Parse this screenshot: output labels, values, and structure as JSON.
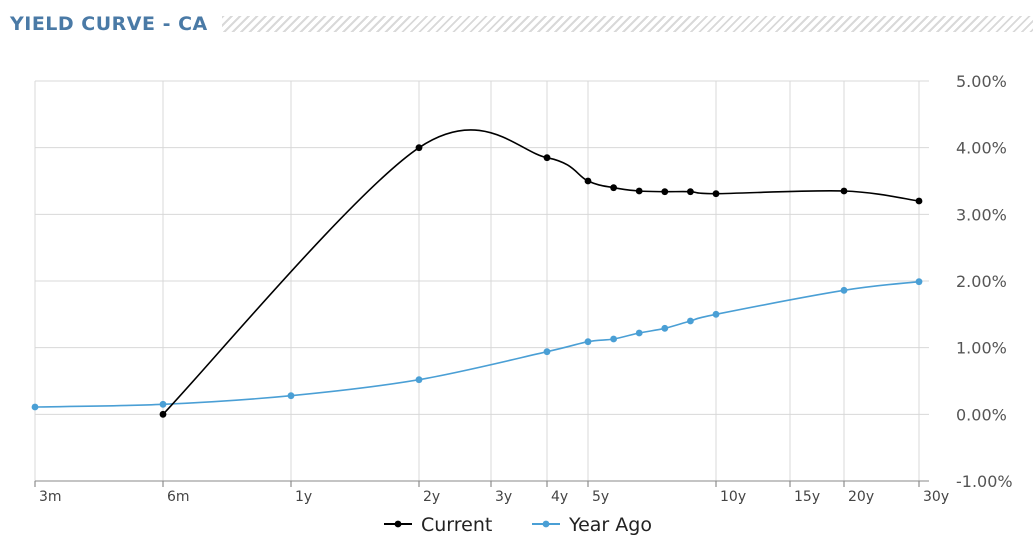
{
  "header": {
    "title": "YIELD CURVE - CA"
  },
  "chart_data": {
    "type": "line",
    "categories": [
      "3m",
      "6m",
      "1y",
      "2y",
      "3y",
      "4y",
      "5y",
      "10y",
      "15y",
      "20y",
      "30y"
    ],
    "y_ticks": [
      "5.00%",
      "4.00%",
      "3.00%",
      "2.00%",
      "1.00%",
      "0.00%",
      "-1.00%"
    ],
    "ylim": [
      -1,
      5
    ],
    "grid": true,
    "legend": "bottom-center",
    "series": [
      {
        "name": "Current",
        "color": "#000000",
        "points": [
          {
            "x": 0.5,
            "y": 0.0
          },
          {
            "x": 2,
            "y": 4.0
          },
          {
            "x": 4,
            "y": 3.85
          },
          {
            "x": 5,
            "y": 3.5
          },
          {
            "x": 6,
            "y": 3.4
          },
          {
            "x": 7,
            "y": 3.35
          },
          {
            "x": 8,
            "y": 3.34
          },
          {
            "x": 9,
            "y": 3.34
          },
          {
            "x": 10,
            "y": 3.31
          },
          {
            "x": 20,
            "y": 3.35
          },
          {
            "x": 30,
            "y": 3.2
          }
        ]
      },
      {
        "name": "Year Ago",
        "color": "#4a9fd5",
        "points": [
          {
            "x": 0.25,
            "y": 0.11
          },
          {
            "x": 0.5,
            "y": 0.15
          },
          {
            "x": 1,
            "y": 0.28
          },
          {
            "x": 2,
            "y": 0.52
          },
          {
            "x": 4,
            "y": 0.94
          },
          {
            "x": 5,
            "y": 1.09
          },
          {
            "x": 6,
            "y": 1.13
          },
          {
            "x": 7,
            "y": 1.22
          },
          {
            "x": 8,
            "y": 1.29
          },
          {
            "x": 9,
            "y": 1.4
          },
          {
            "x": 10,
            "y": 1.5
          },
          {
            "x": 20,
            "y": 1.86
          },
          {
            "x": 30,
            "y": 1.99
          }
        ]
      }
    ]
  }
}
